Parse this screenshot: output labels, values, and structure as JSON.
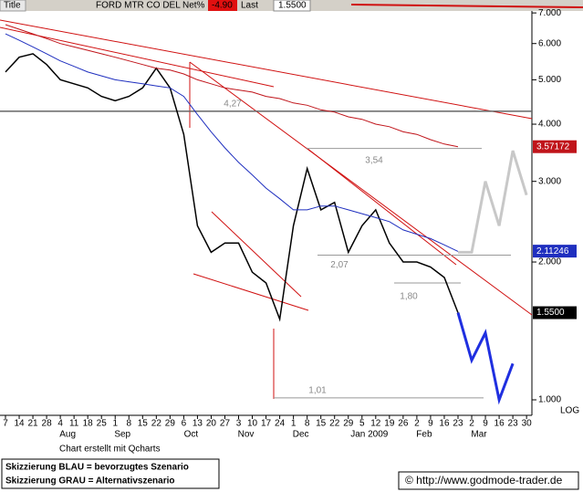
{
  "header": {
    "title": "Title",
    "symbol": "FORD MTR CO DEL",
    "net_label": "Net%",
    "net_value": "-4.90",
    "last_label": "Last",
    "last_value": "1.5500"
  },
  "chart_data": {
    "type": "line",
    "log_scale": true,
    "scale_label": "LOG",
    "categories": [
      "7",
      "14",
      "21",
      "28",
      "4",
      "11",
      "18",
      "25",
      "1",
      "8",
      "15",
      "22",
      "29",
      "6",
      "13",
      "20",
      "27",
      "3",
      "10",
      "17",
      "24",
      "1",
      "8",
      "15",
      "22",
      "29",
      "5",
      "12",
      "19",
      "26",
      "2",
      "9",
      "16",
      "23",
      "2",
      "9",
      "16",
      "23",
      "30"
    ],
    "month_labels": [
      null,
      null,
      null,
      null,
      "Aug",
      null,
      null,
      null,
      "Sep",
      null,
      null,
      null,
      null,
      "Oct",
      null,
      null,
      null,
      "Nov",
      null,
      null,
      null,
      "Dec",
      null,
      null,
      null,
      null,
      "Jan 2009",
      null,
      null,
      null,
      "Feb",
      null,
      null,
      null,
      "Mar",
      null,
      null,
      null,
      null
    ],
    "series": [
      {
        "color": "#000000",
        "width": 1.5,
        "values": [
          5.2,
          5.6,
          5.7,
          5.4,
          5.0,
          4.9,
          4.8,
          4.6,
          4.5,
          4.6,
          4.8,
          5.3,
          4.8,
          3.8,
          2.4,
          2.1,
          2.2,
          2.2,
          1.9,
          1.8,
          1.5,
          2.4,
          3.2,
          2.6,
          2.7,
          2.1,
          2.4,
          2.6,
          2.2,
          2.0,
          2.0,
          1.95,
          1.85,
          1.55,
          null,
          null,
          null,
          null,
          null
        ],
        "end_label": {
          "value": 1.55,
          "label": "1.5500"
        }
      },
      {
        "color": "#1f2fbf",
        "width": 1,
        "values": [
          6.3,
          6.1,
          5.9,
          5.7,
          5.5,
          5.35,
          5.2,
          5.1,
          5.0,
          4.95,
          4.9,
          4.85,
          4.8,
          4.6,
          4.2,
          3.85,
          3.55,
          3.3,
          3.1,
          2.9,
          2.75,
          2.6,
          2.6,
          2.65,
          2.65,
          2.6,
          2.55,
          2.5,
          2.45,
          2.35,
          2.3,
          2.25,
          2.18,
          2.11,
          null,
          null,
          null,
          null,
          null
        ],
        "end_label": {
          "value": 2.11246,
          "label": "2.11246"
        }
      },
      {
        "color": "#c0141a",
        "width": 1,
        "values": [
          6.6,
          6.45,
          6.3,
          6.15,
          6.0,
          5.9,
          5.8,
          5.7,
          5.6,
          5.5,
          5.4,
          5.3,
          5.25,
          5.15,
          5.0,
          4.9,
          4.8,
          4.75,
          4.7,
          4.6,
          4.55,
          4.45,
          4.4,
          4.3,
          4.25,
          4.15,
          4.1,
          4.0,
          3.95,
          3.85,
          3.8,
          3.7,
          3.62,
          3.57,
          null,
          null,
          null,
          null,
          null
        ],
        "end_label": {
          "value": 3.57172,
          "label": "3.57172"
        }
      },
      {
        "color": "#1f2fe0",
        "width": 3,
        "values": [
          null,
          null,
          null,
          null,
          null,
          null,
          null,
          null,
          null,
          null,
          null,
          null,
          null,
          null,
          null,
          null,
          null,
          null,
          null,
          null,
          null,
          null,
          null,
          null,
          null,
          null,
          null,
          null,
          null,
          null,
          null,
          null,
          null,
          1.55,
          1.22,
          1.4,
          1.0,
          1.2,
          null
        ]
      },
      {
        "color": "#c8c8c8",
        "width": 3,
        "values": [
          null,
          null,
          null,
          null,
          null,
          null,
          null,
          null,
          null,
          null,
          null,
          null,
          null,
          null,
          null,
          null,
          null,
          null,
          null,
          null,
          null,
          null,
          null,
          null,
          null,
          null,
          null,
          null,
          null,
          null,
          null,
          null,
          null,
          2.1,
          2.1,
          3.0,
          2.4,
          3.5,
          2.8
        ]
      }
    ],
    "levels": [
      {
        "value": 4.27,
        "label": "4,27"
      },
      {
        "value": 3.54,
        "label": "3,54"
      },
      {
        "value": 2.07,
        "label": "2,07"
      },
      {
        "value": 1.8,
        "label": "1,80"
      },
      {
        "value": 1.01,
        "label": "1,01"
      }
    ],
    "ylim": [
      0.925,
      7.3
    ],
    "yticks": [
      {
        "value": 1,
        "label": "1.000"
      },
      {
        "value": 2,
        "label": "2.000"
      },
      {
        "value": 3,
        "label": "3.000"
      },
      {
        "value": 4,
        "label": "4.000"
      },
      {
        "value": 5,
        "label": "5.000"
      },
      {
        "value": 6,
        "label": "6.000"
      },
      {
        "value": 7,
        "label": "7.000"
      }
    ]
  },
  "footer": {
    "credit": "Chart erstellt mit Qcharts",
    "legend": [
      "Skizzierung BLAU = bevorzugtes Szenario",
      "Skizzierung GRAU = Alternativszenario"
    ],
    "copyright": "© http://www.godmode-trader.de"
  }
}
